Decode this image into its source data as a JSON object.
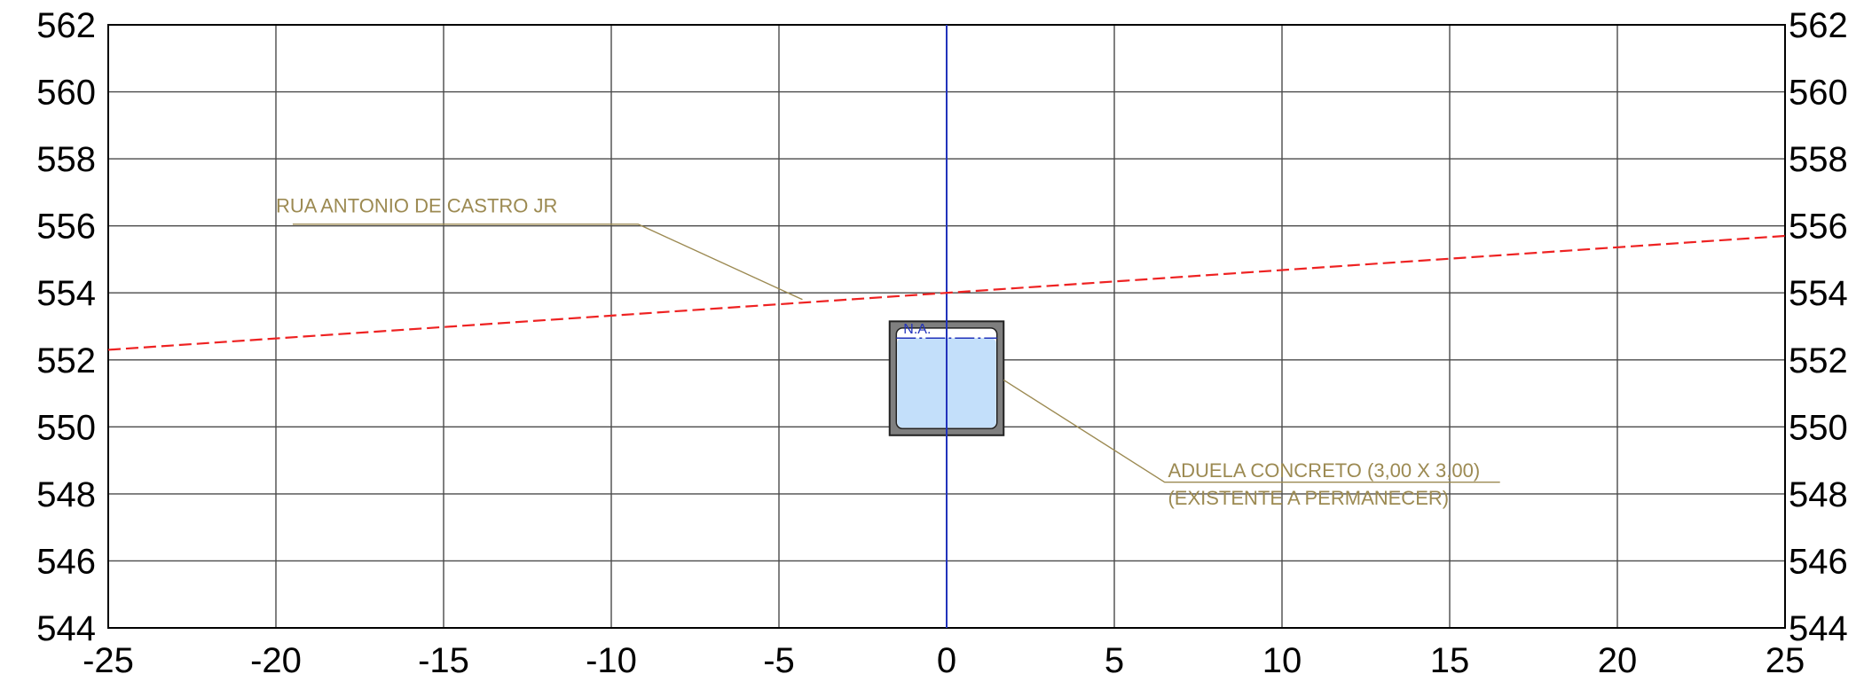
{
  "chart_data": {
    "type": "cross-section",
    "x_range": [
      -25,
      25
    ],
    "y_range": [
      544,
      562
    ],
    "grid": true,
    "x_ticks": [
      -25,
      -20,
      -15,
      -10,
      -5,
      0,
      5,
      10,
      15,
      20,
      25
    ],
    "y_ticks": [
      544,
      546,
      548,
      550,
      552,
      554,
      556,
      558,
      560,
      562
    ],
    "x_tick_labels": [
      "-25",
      "-20",
      "-15",
      "-10",
      "-5",
      "0",
      "5",
      "10",
      "15",
      "20",
      "25"
    ],
    "y_tick_labels": [
      "544",
      "546",
      "548",
      "550",
      "552",
      "554",
      "556",
      "558",
      "560",
      "562"
    ],
    "centerline_x": 0,
    "terrain_line": {
      "x": [
        -25,
        25
      ],
      "y": [
        552.3,
        555.7
      ]
    },
    "box_culvert": {
      "outer_x": [
        -1.7,
        1.7
      ],
      "outer_y": [
        549.75,
        553.15
      ],
      "inner_x": [
        -1.5,
        1.5
      ],
      "inner_y": [
        549.95,
        552.95
      ],
      "water_level_y": 552.65
    },
    "annotations": [
      {
        "id": "street",
        "lines": [
          "RUA ANTONIO DE CASTRO JR"
        ],
        "anchor": [
          -20,
          556.4
        ],
        "leader": [
          [
            -19.5,
            556.05
          ],
          [
            -9.2,
            556.05
          ],
          [
            -4.3,
            553.8
          ]
        ]
      },
      {
        "id": "culvert",
        "lines": [
          "ADUELA CONCRETO (3,00 X 3,00)",
          "(EXISTENTE A PERMANECER)"
        ],
        "anchor": [
          6.6,
          548.5
        ],
        "leader": [
          [
            1.7,
            551.4
          ],
          [
            6.5,
            548.35
          ],
          [
            16.5,
            548.35
          ]
        ]
      }
    ],
    "water_label": "N.A.",
    "colors": {
      "grid": "#4a4a4a",
      "frame": "#000000",
      "centerline": "#2233bb",
      "terrain": "#ee2222",
      "culvert_wall": "#7f7f7f",
      "water": "#c3dffa",
      "annotation": "#9c8a52",
      "water_label": "#2233bb"
    }
  }
}
